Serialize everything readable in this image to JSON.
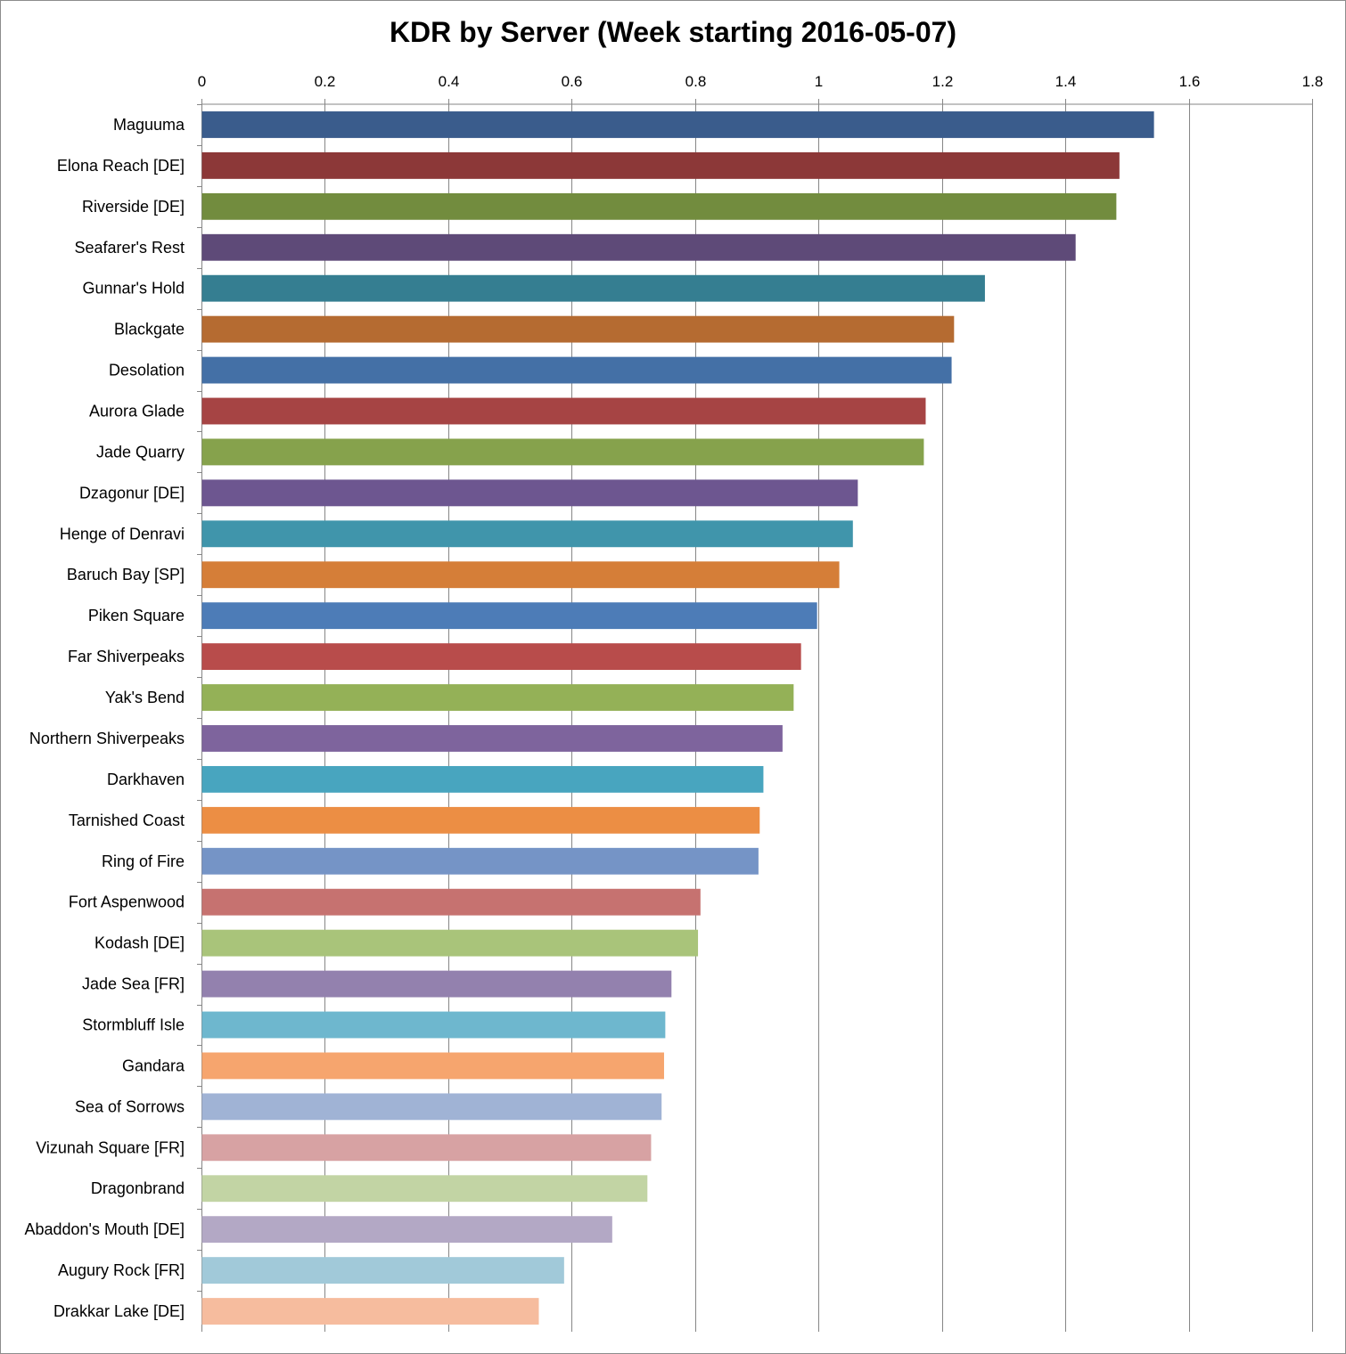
{
  "chart_data": {
    "type": "bar",
    "orientation": "horizontal",
    "title": "KDR by Server (Week starting 2016-05-07)",
    "xlabel": "",
    "ylabel": "",
    "xlim": [
      0,
      1.8
    ],
    "x_axis_position": "top",
    "grid": true,
    "ticks": [
      "0",
      "0.2",
      "0.4",
      "0.6",
      "0.8",
      "1",
      "1.2",
      "1.4",
      "1.6",
      "1.8"
    ],
    "tick_values": [
      0,
      0.2,
      0.4,
      0.6,
      0.8,
      1.0,
      1.2,
      1.4,
      1.6,
      1.8
    ],
    "categories": [
      "Maguuma",
      "Elona Reach [DE]",
      "Riverside [DE]",
      "Seafarer's Rest",
      "Gunnar's Hold",
      "Blackgate",
      "Desolation",
      "Aurora Glade",
      "Jade Quarry",
      "Dzagonur [DE]",
      "Henge of Denravi",
      "Baruch Bay [SP]",
      "Piken Square",
      "Far Shiverpeaks",
      "Yak's Bend",
      "Northern Shiverpeaks",
      "Darkhaven",
      "Tarnished Coast",
      "Ring of Fire",
      "Fort Aspenwood",
      "Kodash [DE]",
      "Jade Sea [FR]",
      "Stormbluff Isle",
      "Gandara",
      "Sea of Sorrows",
      "Vizunah Square [FR]",
      "Dragonbrand",
      "Abaddon's Mouth [DE]",
      "Augury Rock [FR]",
      "Drakkar Lake [DE]"
    ],
    "values": [
      1.543,
      1.487,
      1.482,
      1.416,
      1.269,
      1.219,
      1.215,
      1.173,
      1.17,
      1.063,
      1.055,
      1.033,
      0.997,
      0.971,
      0.959,
      0.941,
      0.91,
      0.904,
      0.902,
      0.808,
      0.804,
      0.761,
      0.751,
      0.749,
      0.745,
      0.728,
      0.722,
      0.665,
      0.587,
      0.546
    ],
    "colors": [
      "#3a5c8c",
      "#8c3838",
      "#728c3e",
      "#5e4a78",
      "#357e91",
      "#b56b31",
      "#4470a6",
      "#a64444",
      "#86a24c",
      "#6d5690",
      "#4095ab",
      "#d57e38",
      "#4d7cb7",
      "#b84c4b",
      "#94b157",
      "#7e649d",
      "#48a5bf",
      "#ec8e44",
      "#7594c6",
      "#c67270",
      "#a9c47a",
      "#9381ae",
      "#6eb7ce",
      "#f6a56e",
      "#a0b3d5",
      "#d7a2a3",
      "#c2d4a4",
      "#b3a8c5",
      "#a1c9d9",
      "#f6bc9e"
    ]
  }
}
